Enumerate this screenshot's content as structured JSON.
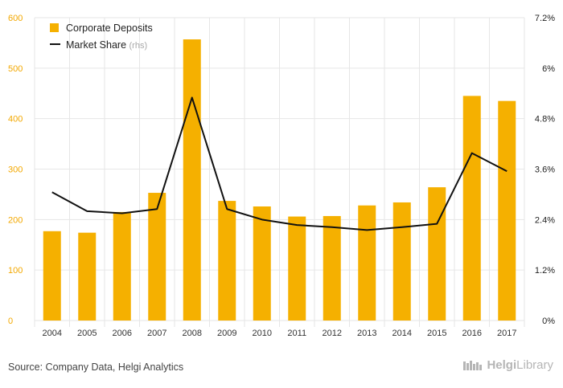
{
  "chart_data": {
    "type": "bar+line",
    "categories": [
      "2004",
      "2005",
      "2006",
      "2007",
      "2008",
      "2009",
      "2010",
      "2011",
      "2012",
      "2013",
      "2014",
      "2015",
      "2016",
      "2017"
    ],
    "series": [
      {
        "name": "Corporate Deposits",
        "type": "bar",
        "axis": "left",
        "values": [
          177,
          174,
          215,
          253,
          557,
          237,
          226,
          206,
          207,
          228,
          234,
          264,
          445,
          435
        ]
      },
      {
        "name": "Market Share",
        "name_suffix": "(rhs)",
        "type": "line",
        "axis": "right",
        "values": [
          3.05,
          2.6,
          2.55,
          2.65,
          5.3,
          2.65,
          2.4,
          2.27,
          2.22,
          2.15,
          2.22,
          2.3,
          3.98,
          3.55
        ]
      }
    ],
    "y_left": {
      "min": 0,
      "max": 600,
      "ticks": [
        "0",
        "100",
        "200",
        "300",
        "400",
        "500",
        "600"
      ]
    },
    "y_right": {
      "min": 0,
      "max": 7.2,
      "ticks": [
        "0%",
        "1.2%",
        "2.4%",
        "3.6%",
        "4.8%",
        "6%",
        "7.2%"
      ]
    },
    "grid": true,
    "legend": "top-left",
    "colors": {
      "bar": "#f5b000",
      "line": "#111111",
      "grid": "#e6e6e6",
      "left_tick": "#f3a800"
    }
  },
  "footer": {
    "source": "Source: Company Data, Helgi Analytics",
    "brand_part1": "Helgi",
    "brand_part2": "Library"
  }
}
